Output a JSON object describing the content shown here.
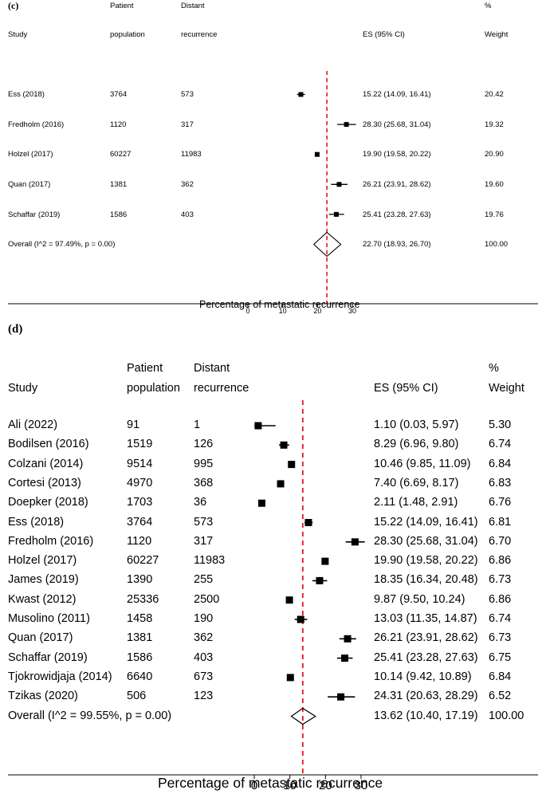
{
  "panels": {
    "c": {
      "label": "(c)",
      "headers": {
        "study": "Study",
        "patient_line1": "Patient",
        "patient_line2": "population",
        "distant_line1": "Distant",
        "distant_line2": "recurrence",
        "es": "ES (95% CI)",
        "weight_line1": "%",
        "weight_line2": "Weight"
      },
      "rows": [
        {
          "study": "Ess (2018)",
          "patient": "3764",
          "distant": "573",
          "es_text": "15.22 (14.09, 16.41)",
          "weight": "20.42"
        },
        {
          "study": "Fredholm (2016)",
          "patient": "1120",
          "distant": "317",
          "es_text": "28.30 (25.68, 31.04)",
          "weight": "19.32"
        },
        {
          "study": "Holzel (2017)",
          "patient": "60227",
          "distant": "11983",
          "es_text": "19.90 (19.58, 20.22)",
          "weight": "20.90"
        },
        {
          "study": "Quan (2017)",
          "patient": "1381",
          "distant": "362",
          "es_text": "26.21 (23.91, 28.62)",
          "weight": "19.60"
        },
        {
          "study": "Schaffar (2019)",
          "patient": "1586",
          "distant": "403",
          "es_text": "25.41 (23.28, 27.63)",
          "weight": "19.76"
        }
      ],
      "overall": {
        "label": "Overall  (I^2 = 97.49%, p = 0.00)",
        "es_text": "22.70 (18.93, 26.70)",
        "weight": "100.00"
      }
    },
    "d": {
      "label": "(d)",
      "headers": {
        "study": "Study",
        "patient_line1": "Patient",
        "patient_line2": "population",
        "distant_line1": "Distant",
        "distant_line2": "recurrence",
        "es": "ES (95% CI)",
        "weight_line1": "%",
        "weight_line2": "Weight"
      },
      "rows": [
        {
          "study": "Ali (2022)",
          "patient": "91",
          "distant": "1",
          "es_text": "1.10 (0.03, 5.97)",
          "weight": "5.30"
        },
        {
          "study": "Bodilsen  (2016)",
          "patient": "1519",
          "distant": "126",
          "es_text": "8.29 (6.96, 9.80)",
          "weight": "6.74"
        },
        {
          "study": "Colzani (2014)",
          "patient": "9514",
          "distant": "995",
          "es_text": "10.46 (9.85, 11.09)",
          "weight": "6.84"
        },
        {
          "study": "Cortesi (2013)",
          "patient": "4970",
          "distant": "368",
          "es_text": "7.40 (6.69, 8.17)",
          "weight": "6.83"
        },
        {
          "study": "Doepker (2018)",
          "patient": "1703",
          "distant": "36",
          "es_text": "2.11 (1.48, 2.91)",
          "weight": "6.76"
        },
        {
          "study": "Ess (2018)",
          "patient": "3764",
          "distant": "573",
          "es_text": "15.22 (14.09, 16.41)",
          "weight": "6.81"
        },
        {
          "study": "Fredholm (2016)",
          "patient": "1120",
          "distant": "317",
          "es_text": "28.30 (25.68, 31.04)",
          "weight": "6.70"
        },
        {
          "study": "Holzel (2017)",
          "patient": "60227",
          "distant": "11983",
          "es_text": "19.90 (19.58, 20.22)",
          "weight": "6.86"
        },
        {
          "study": "James (2019)",
          "patient": "1390",
          "distant": "255",
          "es_text": "18.35 (16.34, 20.48)",
          "weight": "6.73"
        },
        {
          "study": "Kwast (2012)",
          "patient": "25336",
          "distant": "2500",
          "es_text": "9.87 (9.50, 10.24)",
          "weight": "6.86"
        },
        {
          "study": "Musolino (2011)",
          "patient": "1458",
          "distant": "190",
          "es_text": "13.03 (11.35, 14.87)",
          "weight": "6.74"
        },
        {
          "study": "Quan (2017)",
          "patient": "1381",
          "distant": "362",
          "es_text": "26.21 (23.91, 28.62)",
          "weight": "6.73"
        },
        {
          "study": "Schaffar (2019)",
          "patient": "1586",
          "distant": "403",
          "es_text": "25.41 (23.28, 27.63)",
          "weight": "6.75"
        },
        {
          "study": "Tjokrowidjaja (2014)",
          "patient": "6640",
          "distant": "673",
          "es_text": "10.14 (9.42, 10.89)",
          "weight": "6.84"
        },
        {
          "study": "Tzikas (2020)",
          "patient": "506",
          "distant": "123",
          "es_text": "24.31 (20.63, 28.29)",
          "weight": "6.52"
        }
      ],
      "overall": {
        "label": "Overall  (I^2 = 99.55%, p = 0.00)",
        "es_text": "13.62 (10.40, 17.19)",
        "weight": "100.00"
      }
    }
  },
  "chart_data": [
    {
      "type": "forest",
      "panel": "c",
      "xlabel": "Percentage of metastatic recurrence",
      "xticks": [
        0,
        10,
        20,
        30
      ],
      "xlim": [
        0,
        30
      ],
      "reference_line": 22.7,
      "reference_color": "#e8151b",
      "studies": [
        {
          "name": "Ess (2018)",
          "es": 15.22,
          "lo": 14.09,
          "hi": 16.41,
          "weight": 20.42
        },
        {
          "name": "Fredholm (2016)",
          "es": 28.3,
          "lo": 25.68,
          "hi": 31.04,
          "weight": 19.32
        },
        {
          "name": "Holzel (2017)",
          "es": 19.9,
          "lo": 19.58,
          "hi": 20.22,
          "weight": 20.9
        },
        {
          "name": "Quan (2017)",
          "es": 26.21,
          "lo": 23.91,
          "hi": 28.62,
          "weight": 19.6
        },
        {
          "name": "Schaffar (2019)",
          "es": 25.41,
          "lo": 23.28,
          "hi": 27.63,
          "weight": 19.76
        }
      ],
      "overall": {
        "es": 22.7,
        "lo": 18.93,
        "hi": 26.7,
        "weight": 100.0
      }
    },
    {
      "type": "forest",
      "panel": "d",
      "xlabel": "Percentage of metastatic recurrence",
      "xticks": [
        0,
        10,
        20,
        30
      ],
      "xlim": [
        0,
        30
      ],
      "reference_line": 13.62,
      "reference_color": "#e8151b",
      "studies": [
        {
          "name": "Ali (2022)",
          "es": 1.1,
          "lo": 0.03,
          "hi": 5.97,
          "weight": 5.3
        },
        {
          "name": "Bodilsen  (2016)",
          "es": 8.29,
          "lo": 6.96,
          "hi": 9.8,
          "weight": 6.74
        },
        {
          "name": "Colzani (2014)",
          "es": 10.46,
          "lo": 9.85,
          "hi": 11.09,
          "weight": 6.84
        },
        {
          "name": "Cortesi (2013)",
          "es": 7.4,
          "lo": 6.69,
          "hi": 8.17,
          "weight": 6.83
        },
        {
          "name": "Doepker (2018)",
          "es": 2.11,
          "lo": 1.48,
          "hi": 2.91,
          "weight": 6.76
        },
        {
          "name": "Ess (2018)",
          "es": 15.22,
          "lo": 14.09,
          "hi": 16.41,
          "weight": 6.81
        },
        {
          "name": "Fredholm (2016)",
          "es": 28.3,
          "lo": 25.68,
          "hi": 31.04,
          "weight": 6.7
        },
        {
          "name": "Holzel (2017)",
          "es": 19.9,
          "lo": 19.58,
          "hi": 20.22,
          "weight": 6.86
        },
        {
          "name": "James (2019)",
          "es": 18.35,
          "lo": 16.34,
          "hi": 20.48,
          "weight": 6.73
        },
        {
          "name": "Kwast (2012)",
          "es": 9.87,
          "lo": 9.5,
          "hi": 10.24,
          "weight": 6.86
        },
        {
          "name": "Musolino (2011)",
          "es": 13.03,
          "lo": 11.35,
          "hi": 14.87,
          "weight": 6.74
        },
        {
          "name": "Quan (2017)",
          "es": 26.21,
          "lo": 23.91,
          "hi": 28.62,
          "weight": 6.73
        },
        {
          "name": "Schaffar (2019)",
          "es": 25.41,
          "lo": 23.28,
          "hi": 27.63,
          "weight": 6.75
        },
        {
          "name": "Tjokrowidjaja (2014)",
          "es": 10.14,
          "lo": 9.42,
          "hi": 10.89,
          "weight": 6.84
        },
        {
          "name": "Tzikas (2020)",
          "es": 24.31,
          "lo": 20.63,
          "hi": 28.29,
          "weight": 6.52
        }
      ],
      "overall": {
        "es": 13.62,
        "lo": 10.4,
        "hi": 17.19,
        "weight": 100.0
      }
    }
  ]
}
